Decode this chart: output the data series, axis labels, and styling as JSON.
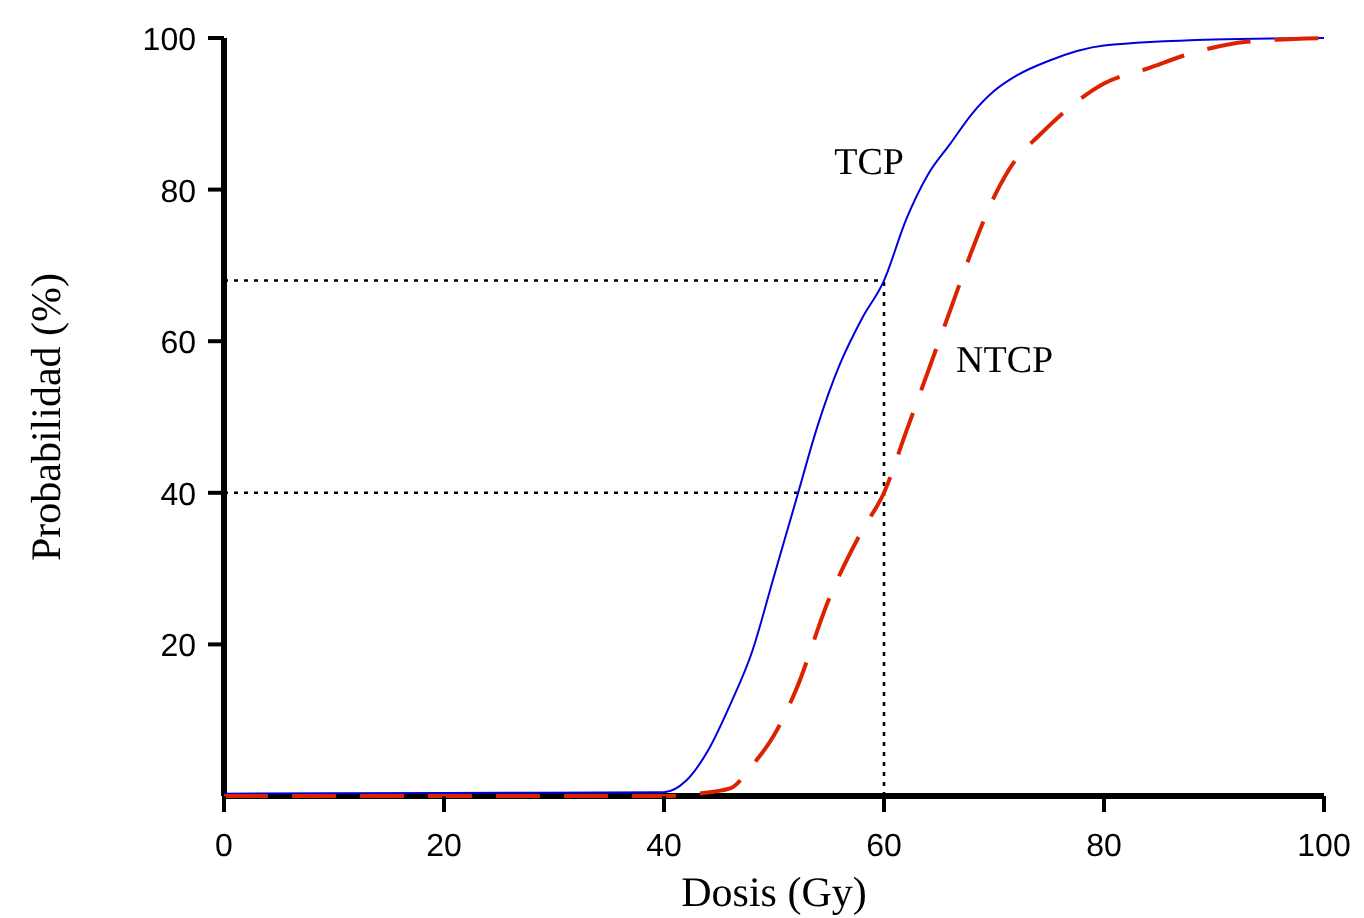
{
  "chart_data": {
    "type": "line",
    "xlabel": "Dosis (Gy)",
    "ylabel": "Probabilidad (%)",
    "xlim": [
      0,
      100
    ],
    "ylim": [
      0,
      100
    ],
    "xticks": [
      0,
      20,
      40,
      60,
      80,
      100
    ],
    "yticks": [
      20,
      40,
      60,
      80,
      100
    ],
    "grid": false,
    "series": [
      {
        "name": "TCP",
        "color": "#0000dd",
        "line_style": "solid",
        "x": [
          0,
          20,
          40,
          42,
          44,
          46,
          48,
          50,
          52,
          54,
          56,
          58,
          60,
          62,
          64,
          66,
          68,
          70,
          72,
          75,
          80,
          90,
          100
        ],
        "values": [
          0.3,
          0.4,
          0.5,
          2,
          6,
          12,
          19,
          29,
          39,
          49,
          57,
          63,
          68,
          76,
          82,
          86,
          90,
          93,
          95,
          97,
          99,
          99.8,
          100
        ]
      },
      {
        "name": "NTCP",
        "color": "#dd2200",
        "line_style": "dashed",
        "x": [
          0,
          20,
          40,
          43,
          46,
          48,
          50,
          52,
          55,
          58,
          60,
          62,
          64,
          66,
          68,
          70,
          72,
          74,
          77,
          80,
          84,
          88,
          93,
          100
        ],
        "values": [
          0,
          0,
          0,
          0.3,
          1,
          4,
          8,
          14,
          26,
          35,
          40,
          48,
          56,
          64,
          72,
          79,
          84,
          87,
          91,
          94,
          96,
          98,
          99.5,
          100
        ]
      }
    ],
    "ref_lines": [
      {
        "axis": "y",
        "value": 68,
        "line_style": "dotted",
        "color": "#000000"
      },
      {
        "axis": "y",
        "value": 40,
        "line_style": "dotted",
        "color": "#000000"
      },
      {
        "axis": "x",
        "value": 60,
        "line_style": "dotted",
        "color": "#000000"
      }
    ]
  }
}
